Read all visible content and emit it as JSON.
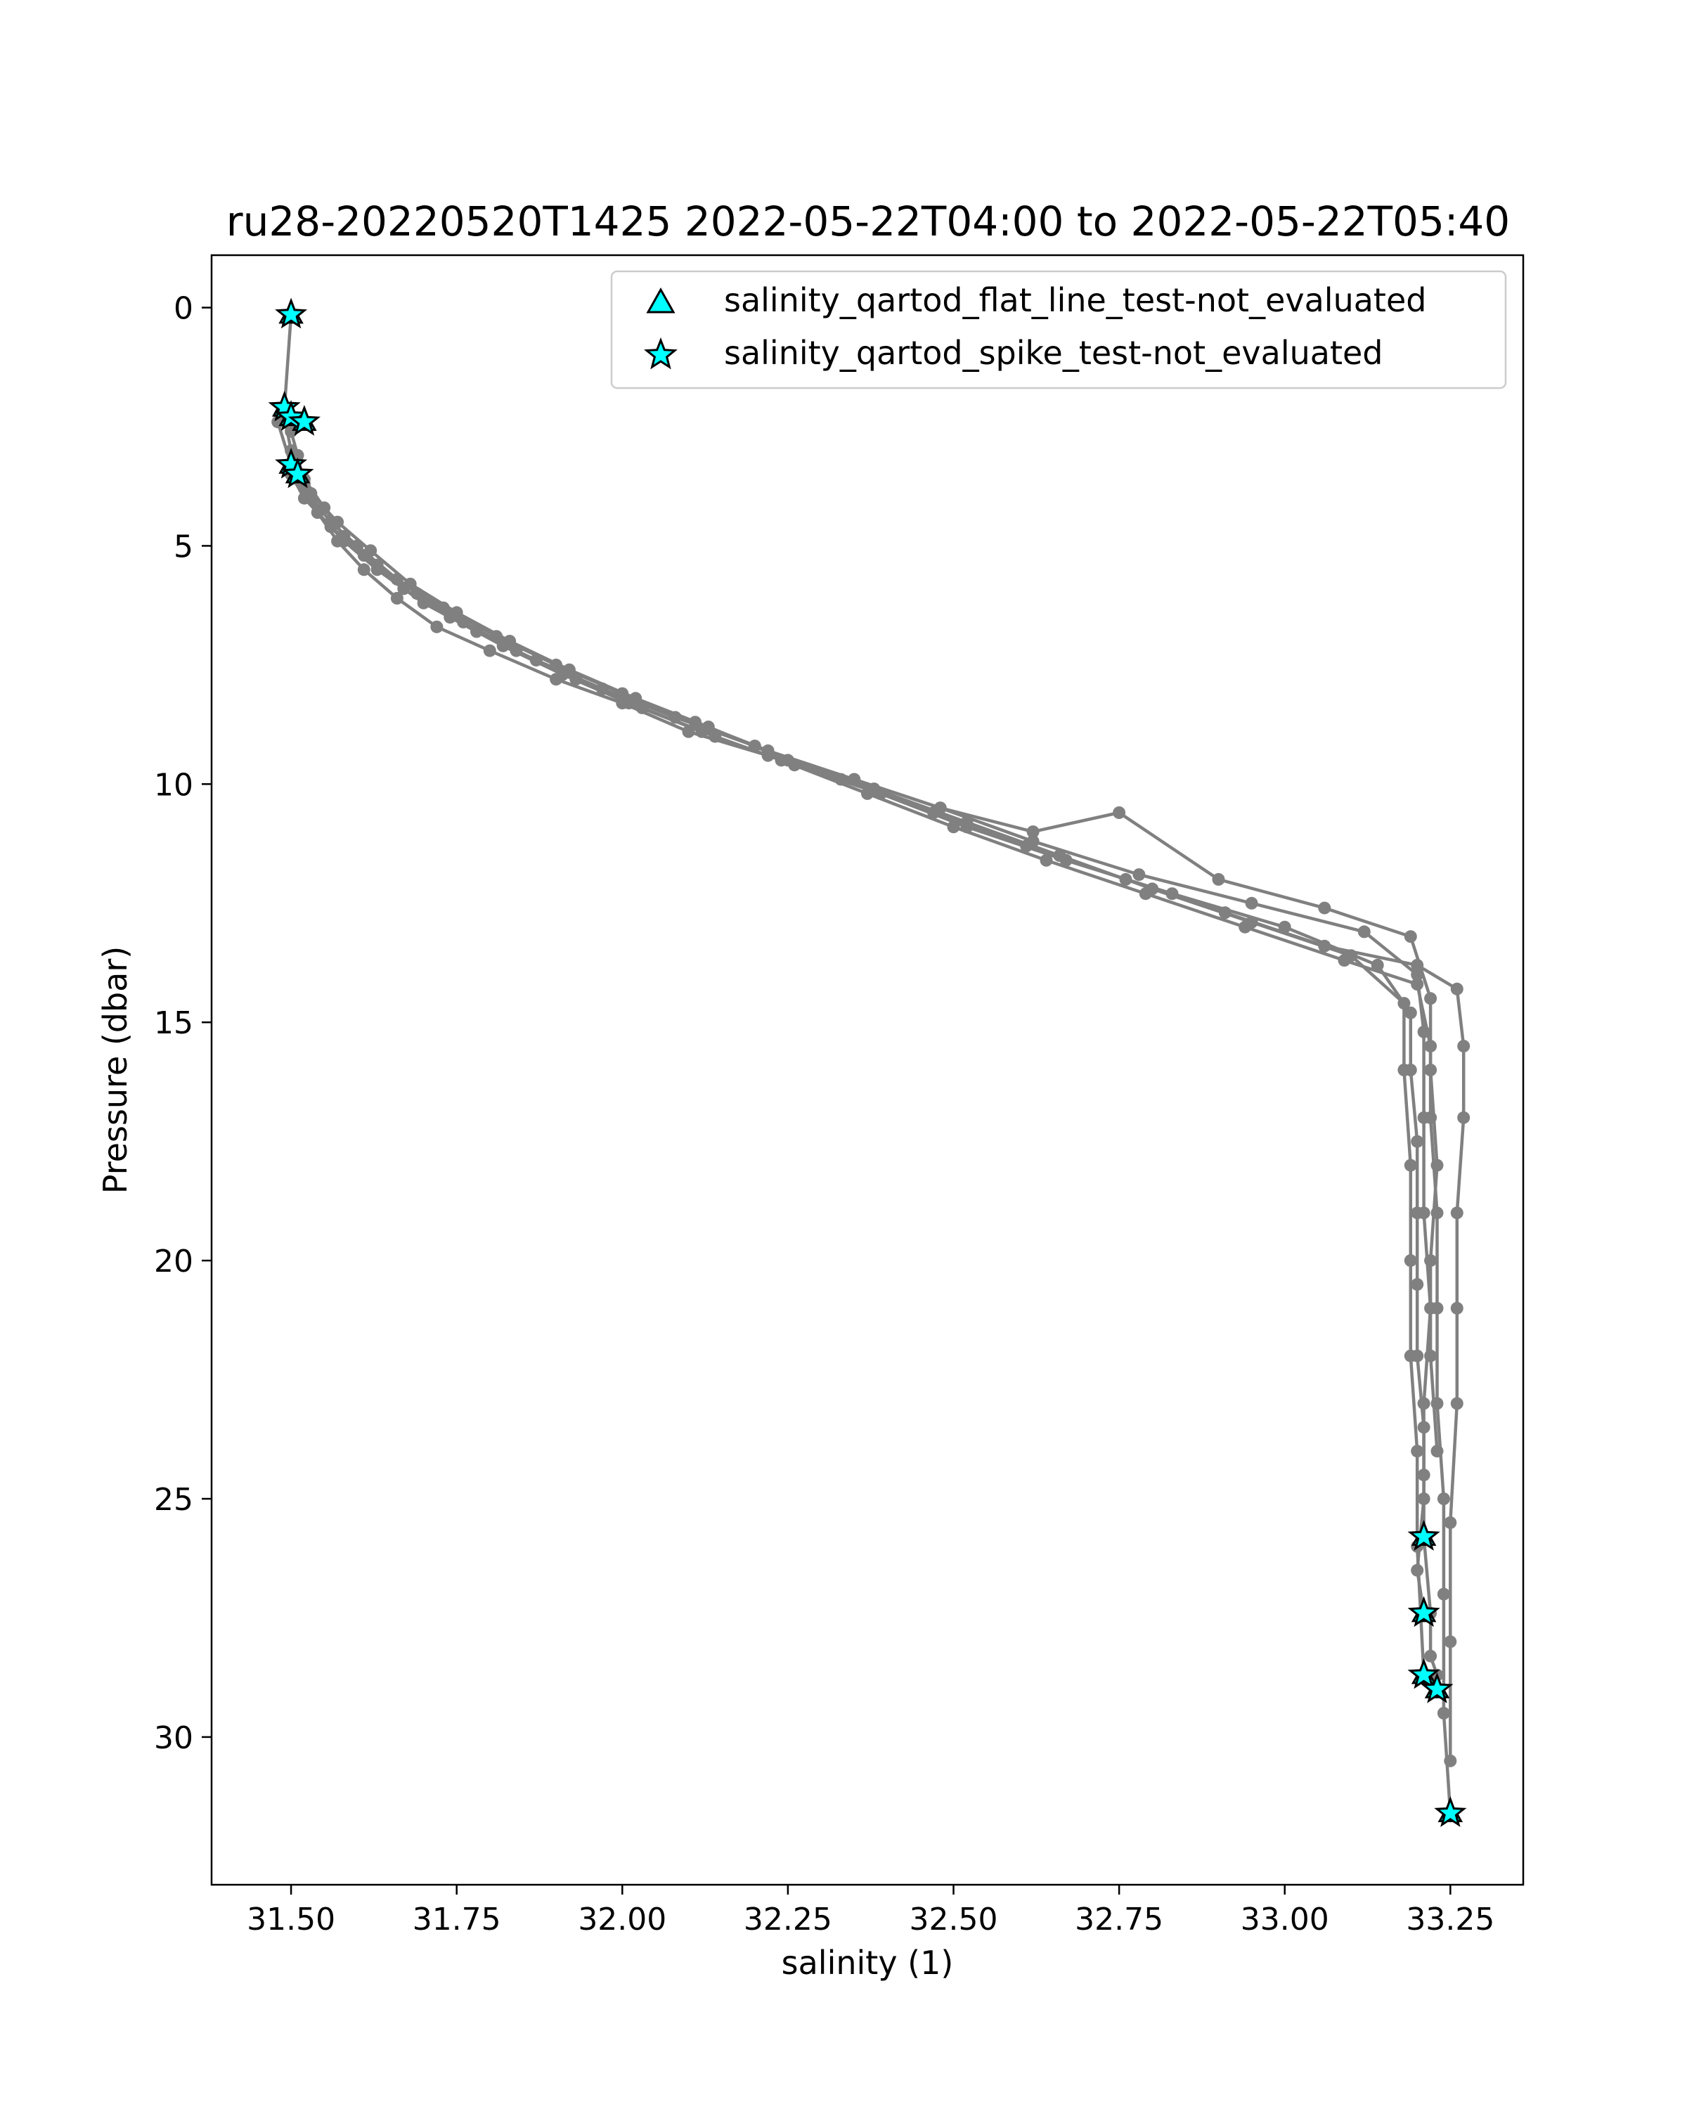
{
  "chart_data": {
    "type": "scatter",
    "title": "ru28-20220520T1425 2022-05-22T04:00 to 2022-05-22T05:40",
    "xlabel": "salinity (1)",
    "ylabel": "Pressure (dbar)",
    "xlim": [
      31.38,
      33.36
    ],
    "ylim": [
      33.1,
      -1.1
    ],
    "y_inverted": true,
    "xticks": [
      31.5,
      31.75,
      32.0,
      32.25,
      32.5,
      32.75,
      33.0,
      33.25
    ],
    "xtick_labels": [
      "31.50",
      "31.75",
      "32.00",
      "32.25",
      "32.50",
      "32.75",
      "33.00",
      "33.25"
    ],
    "yticks": [
      0,
      5,
      10,
      15,
      20,
      25,
      30
    ],
    "ytick_labels": [
      "0",
      "5",
      "10",
      "15",
      "20",
      "25",
      "30"
    ],
    "grid": false,
    "legend_position": "top-right",
    "colors": {
      "profile": "#808080",
      "flag_fill": "#00ffff",
      "flag_edge": "#000000"
    },
    "legend": [
      {
        "label": "salinity_qartod_flat_line_test-not_evaluated",
        "marker": "triangle"
      },
      {
        "label": "salinity_qartod_spike_test-not_evaluated",
        "marker": "star"
      }
    ],
    "profile_series": [
      {
        "salinity": [
          31.5,
          31.49,
          31.5,
          31.51,
          31.52,
          31.54,
          31.57,
          31.61,
          31.66,
          31.72,
          31.8,
          31.9,
          32.0,
          32.1,
          32.22,
          32.35,
          32.48,
          32.62,
          32.78,
          32.95,
          33.12,
          33.2,
          33.21,
          33.21,
          33.21,
          33.22,
          33.21,
          33.21,
          33.21,
          33.22,
          33.22,
          33.23,
          33.23
        ],
        "pressure": [
          0.15,
          2.1,
          2.6,
          3.1,
          3.7,
          4.3,
          4.9,
          5.5,
          6.1,
          6.7,
          7.2,
          7.8,
          8.3,
          8.9,
          9.4,
          9.9,
          10.5,
          11.2,
          11.9,
          12.5,
          13.1,
          14.0,
          15.2,
          17.0,
          19.0,
          21.0,
          23.0,
          24.5,
          25.8,
          27.4,
          28.3,
          28.7,
          29.0
        ]
      },
      {
        "salinity": [
          31.49,
          31.5,
          31.52,
          31.55,
          31.58,
          31.63,
          31.69,
          31.76,
          31.84,
          31.93,
          32.03,
          32.14,
          32.26,
          32.39,
          32.52,
          32.67,
          32.83,
          33.0,
          33.14,
          33.19,
          33.19,
          33.2,
          33.2,
          33.2,
          33.2,
          33.21,
          33.21,
          33.2,
          33.21
        ],
        "pressure": [
          2.3,
          3.0,
          3.6,
          4.2,
          4.8,
          5.4,
          6.0,
          6.6,
          7.2,
          7.8,
          8.4,
          9.0,
          9.6,
          10.2,
          10.9,
          11.6,
          12.3,
          13.0,
          13.8,
          14.8,
          16.0,
          17.5,
          19.0,
          20.5,
          22.0,
          23.5,
          25.0,
          26.5,
          27.4
        ]
      },
      {
        "salinity": [
          31.48,
          31.5,
          31.53,
          31.57,
          31.62,
          31.68,
          31.75,
          31.83,
          31.92,
          32.02,
          32.13,
          32.25,
          32.38,
          32.52,
          32.66,
          32.8,
          32.95,
          33.1,
          33.18,
          33.18,
          33.19,
          33.19,
          33.19,
          33.2,
          33.2,
          33.21
        ],
        "pressure": [
          2.4,
          3.3,
          3.9,
          4.5,
          5.1,
          5.8,
          6.4,
          7.0,
          7.6,
          8.2,
          8.8,
          9.5,
          10.1,
          10.8,
          11.5,
          12.2,
          12.9,
          13.6,
          14.6,
          16.0,
          18.0,
          20.0,
          22.0,
          24.0,
          26.0,
          28.7
        ]
      },
      {
        "salinity": [
          31.5,
          31.52,
          31.56,
          31.61,
          31.67,
          31.74,
          31.82,
          31.91,
          32.01,
          32.12,
          32.24,
          32.37,
          32.5,
          32.64,
          32.79,
          32.94,
          33.09,
          33.2,
          33.22,
          33.22,
          33.23,
          33.23,
          33.23,
          33.24,
          33.24,
          33.24,
          33.25
        ],
        "pressure": [
          3.5,
          4.0,
          4.6,
          5.2,
          5.9,
          6.5,
          7.1,
          7.7,
          8.3,
          8.9,
          9.5,
          10.2,
          10.9,
          11.6,
          12.3,
          13.0,
          13.7,
          14.2,
          15.5,
          17.0,
          19.0,
          21.0,
          23.0,
          25.0,
          27.0,
          29.5,
          31.6
        ]
      },
      {
        "salinity": [
          31.51,
          31.54,
          31.58,
          31.63,
          31.7,
          31.78,
          31.87,
          31.97,
          32.08,
          32.2,
          32.33,
          32.47,
          32.61,
          32.76,
          32.91,
          33.06,
          33.2,
          33.26,
          33.27,
          33.27,
          33.26,
          33.26,
          33.26,
          33.25,
          33.25,
          33.25
        ],
        "pressure": [
          3.6,
          4.3,
          4.9,
          5.5,
          6.2,
          6.8,
          7.4,
          8.0,
          8.6,
          9.2,
          9.9,
          10.6,
          11.3,
          12.0,
          12.7,
          13.4,
          13.8,
          14.3,
          15.5,
          17.0,
          19.0,
          21.0,
          23.0,
          25.5,
          28.0,
          30.5
        ]
      },
      {
        "salinity": [
          31.52,
          31.56,
          31.6,
          31.66,
          31.73,
          31.81,
          31.9,
          32.0,
          32.11,
          32.22,
          32.35,
          32.48,
          32.62,
          32.75,
          32.9,
          33.06,
          33.19,
          33.22,
          33.22,
          33.23,
          33.22,
          33.22,
          33.23
        ],
        "pressure": [
          3.8,
          4.5,
          5.0,
          5.7,
          6.3,
          6.9,
          7.5,
          8.1,
          8.7,
          9.3,
          9.9,
          10.5,
          11.0,
          10.6,
          12.0,
          12.6,
          13.2,
          14.5,
          16.0,
          18.0,
          20.0,
          22.0,
          24.0
        ]
      }
    ],
    "flagged_points": {
      "flat_line_test": {
        "salinity": [
          31.5,
          31.49,
          31.5,
          31.52,
          31.5,
          31.51,
          33.21,
          33.21,
          33.21,
          33.23,
          33.25
        ],
        "pressure": [
          0.15,
          2.1,
          2.3,
          2.4,
          3.3,
          3.5,
          25.8,
          27.4,
          28.7,
          29.0,
          31.6
        ]
      },
      "spike_test": {
        "salinity": [
          31.5,
          31.49,
          31.5,
          31.52,
          31.5,
          31.51,
          33.21,
          33.21,
          33.21,
          33.23,
          33.25
        ],
        "pressure": [
          0.15,
          2.1,
          2.3,
          2.4,
          3.3,
          3.5,
          25.8,
          27.4,
          28.7,
          29.0,
          31.6
        ]
      }
    }
  }
}
